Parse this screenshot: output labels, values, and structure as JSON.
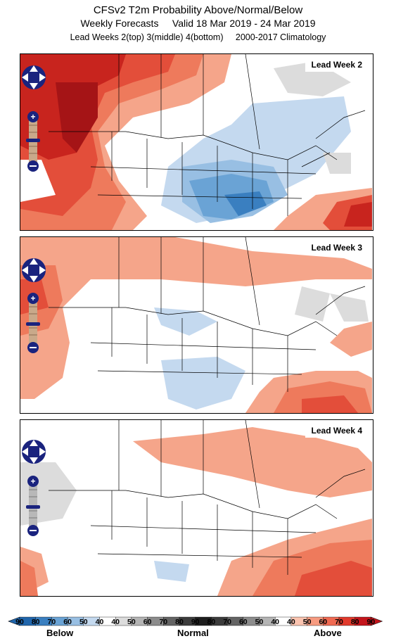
{
  "header": {
    "title": "CFSv2 T2m Probability Above/Normal/Below",
    "line2": "Weekly Forecasts     Valid 18 Mar 2019 - 24 Mar 2019",
    "line3": "Lead Weeks 2(top) 3(middle) 4(bottom)     2000-2017 Climatology"
  },
  "panels": [
    {
      "label": "Lead Week 2"
    },
    {
      "label": "Lead Week 3"
    },
    {
      "label": "Lead Week 4"
    }
  ],
  "controls": {
    "zoom_in": "+",
    "zoom_out": "−"
  },
  "legend": {
    "numbers": [
      "90",
      "80",
      "70",
      "60",
      "50",
      "40",
      "40",
      "50",
      "60",
      "70",
      "80",
      "90",
      "80",
      "70",
      "60",
      "50",
      "40",
      "40",
      "50",
      "60",
      "70",
      "80",
      "90"
    ],
    "below": "Below",
    "normal": "Normal",
    "above": "Above",
    "colors": [
      "#2166ac",
      "#3a7fc0",
      "#6aa3d5",
      "#98bfe3",
      "#c4d9ef",
      "#ffffff",
      "#dcdcdc",
      "#b4b4b4",
      "#8c8c8c",
      "#646464",
      "#3c3c3c",
      "#1e1e1e",
      "#3c3c3c",
      "#646464",
      "#8c8c8c",
      "#b4b4b4",
      "#ffffff",
      "#fbc4b0",
      "#f79b80",
      "#f06a52",
      "#e23a2c",
      "#c4151c"
    ]
  }
}
